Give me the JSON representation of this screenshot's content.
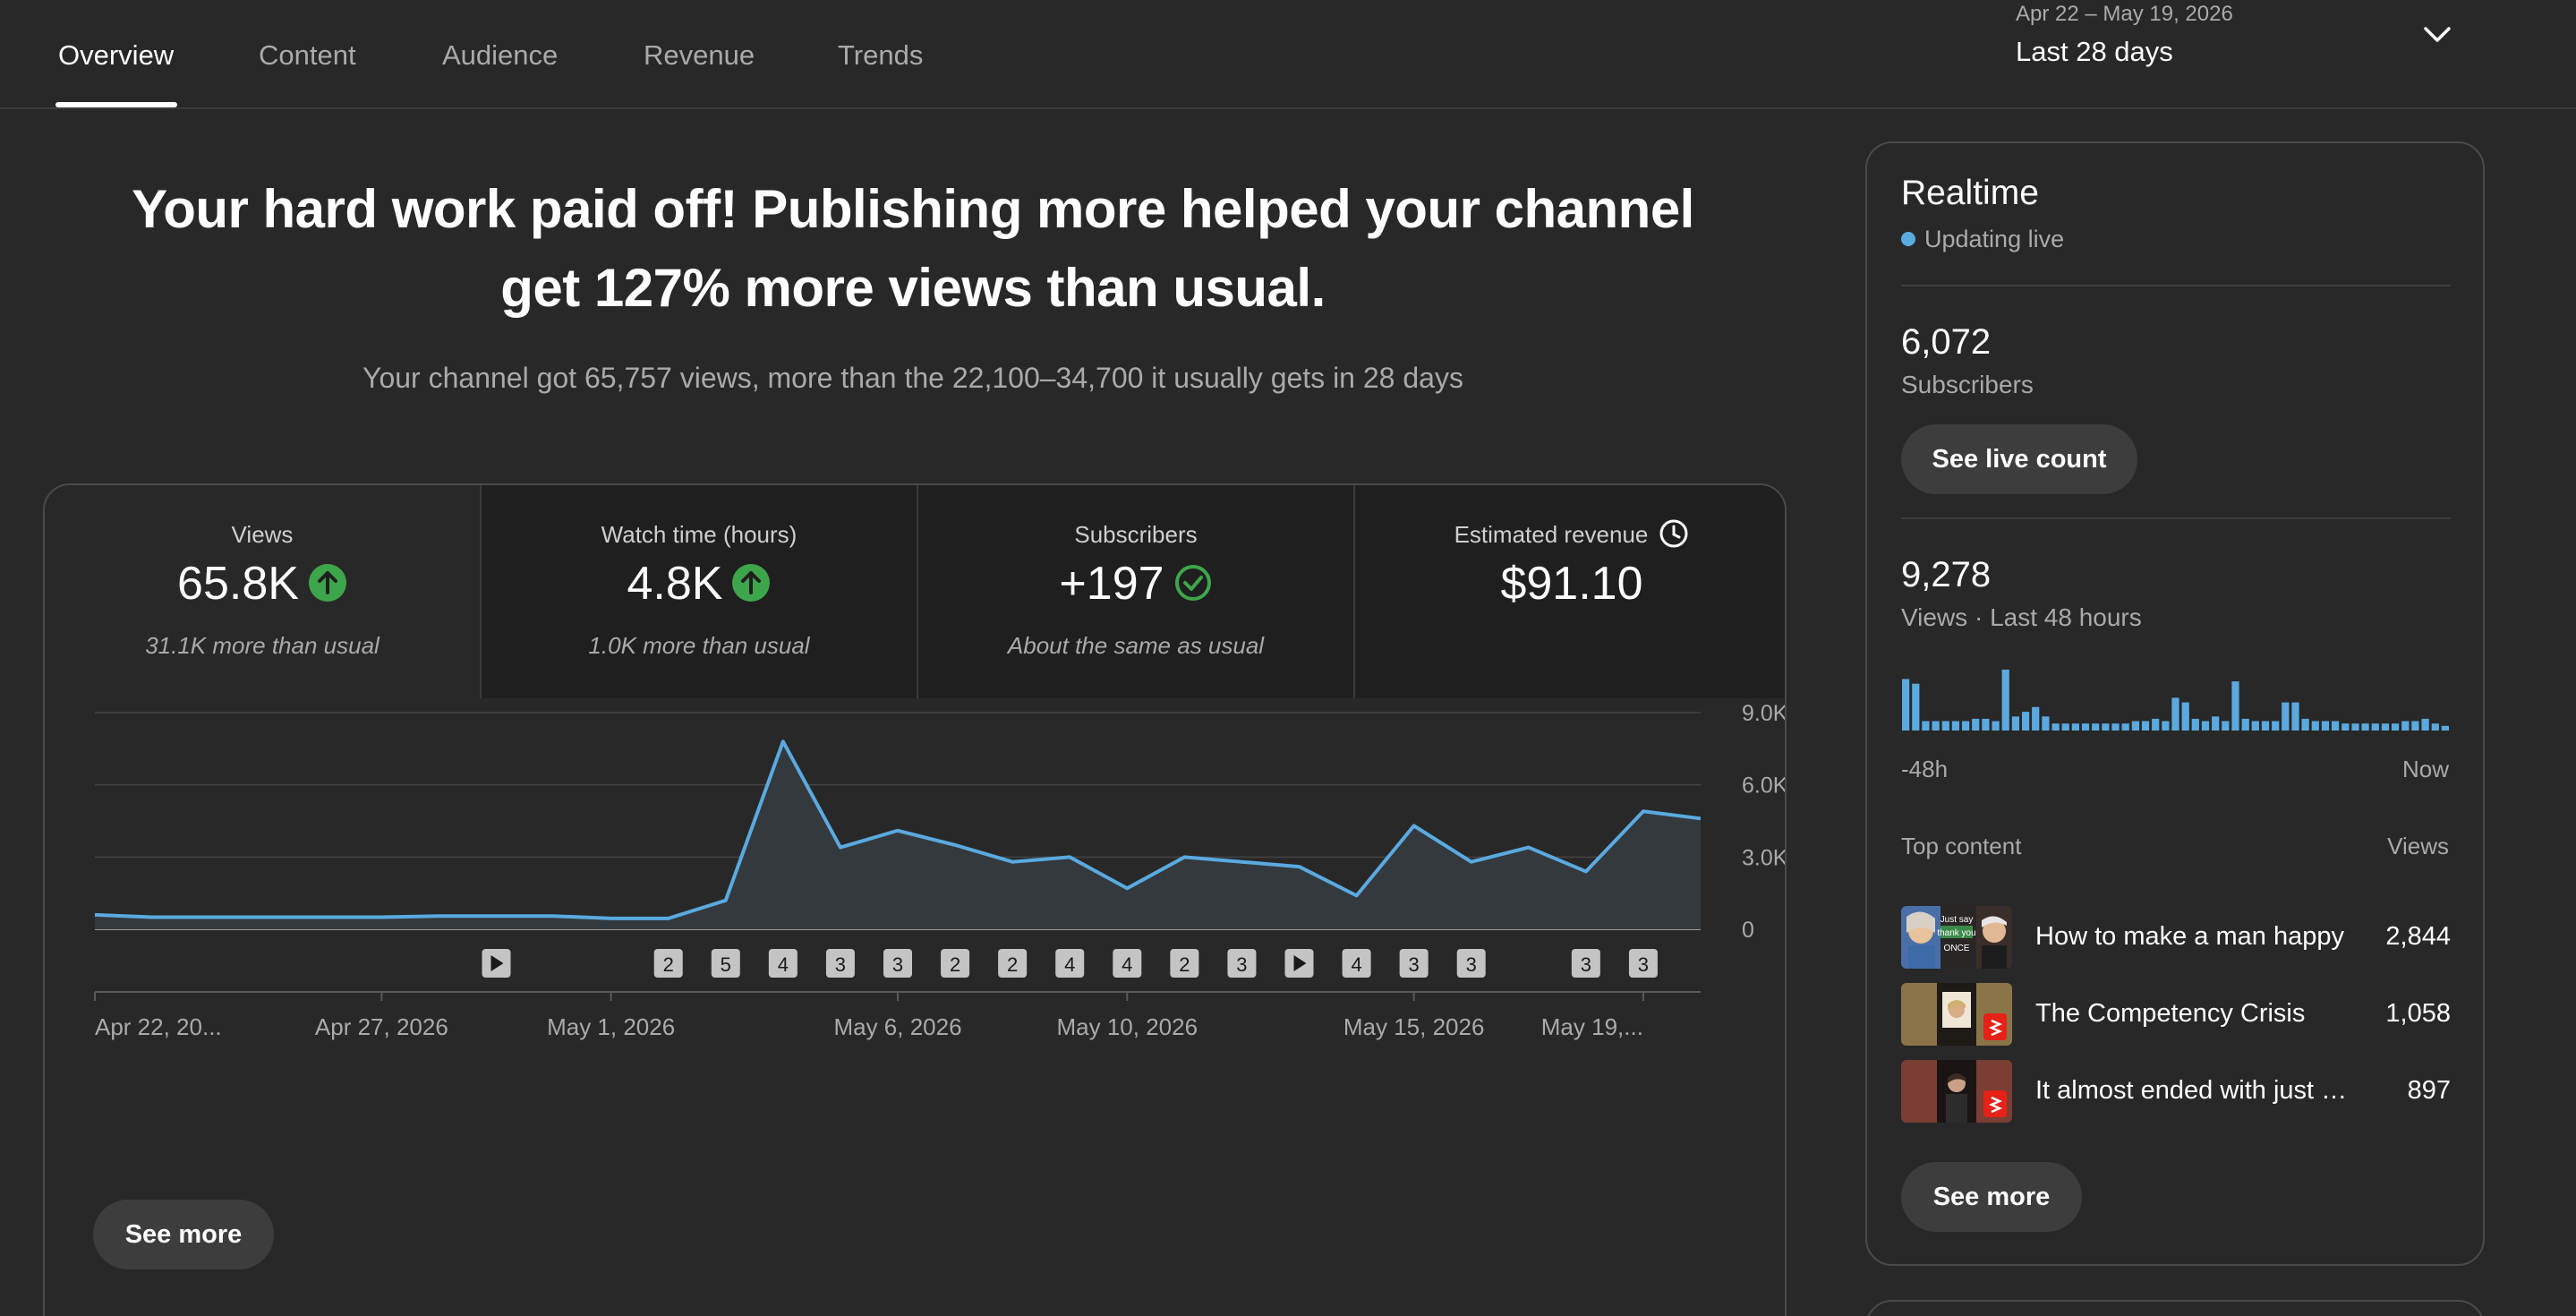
{
  "tabs": [
    {
      "label": "Overview",
      "active": true
    },
    {
      "label": "Content",
      "active": false
    },
    {
      "label": "Audience",
      "active": false
    },
    {
      "label": "Revenue",
      "active": false
    },
    {
      "label": "Trends",
      "active": false
    }
  ],
  "date_range": {
    "range": "Apr 22 – May 19, 2026",
    "label": "Last 28 days",
    "icon": "chevron-down-icon"
  },
  "headline": "Your hard work paid off! Publishing more helped your channel get 127% more views than usual.",
  "subline": "Your channel got 65,757 views, more than the 22,100–34,700 it usually gets in 28 days",
  "metrics": [
    {
      "label": "Views",
      "value": "65.8K",
      "status_icon": "arrow-up-icon",
      "note": "31.1K more than usual"
    },
    {
      "label": "Watch time (hours)",
      "value": "4.8K",
      "status_icon": "arrow-up-icon",
      "note": "1.0K more than usual"
    },
    {
      "label": "Subscribers",
      "value": "+197",
      "status_icon": "check-circle-icon",
      "note": "About the same as usual"
    },
    {
      "label": "Estimated revenue",
      "value": "$91.10",
      "label_icon": "clock-icon"
    }
  ],
  "colors": {
    "accent_line": "#5aaae0",
    "positive": "#3ea64a",
    "background": "#282828"
  },
  "chart_data": {
    "type": "line",
    "series": [
      {
        "values": [
          600,
          500,
          500,
          500,
          500,
          500,
          550,
          550,
          550,
          450,
          450,
          1200,
          7800,
          3400,
          4100,
          3500,
          2800,
          3000,
          1700,
          3000,
          2800,
          2600,
          1400,
          4300,
          2800,
          3400,
          2400,
          4900,
          4600
        ]
      }
    ],
    "ylim": [
      0,
      9000
    ],
    "y_ticks": [
      "9.0K",
      "6.0K",
      "3.0K",
      "0"
    ],
    "x_tick_labels": [
      "Apr 22, 20...",
      "Apr 27, 2026",
      "May 1, 2026",
      "May 6, 2026",
      "May 10, 2026",
      "May 15, 2026",
      "May 19,..."
    ],
    "x_tick_days": [
      0,
      5,
      9,
      14,
      18,
      23,
      27
    ],
    "grid": true,
    "upload_markers": [
      {
        "day": 7,
        "label": "play"
      },
      {
        "day": 10,
        "label": "2"
      },
      {
        "day": 11,
        "label": "5"
      },
      {
        "day": 12,
        "label": "4"
      },
      {
        "day": 13,
        "label": "3"
      },
      {
        "day": 14,
        "label": "3"
      },
      {
        "day": 15,
        "label": "2"
      },
      {
        "day": 16,
        "label": "2"
      },
      {
        "day": 17,
        "label": "4"
      },
      {
        "day": 18,
        "label": "4"
      },
      {
        "day": 19,
        "label": "2"
      },
      {
        "day": 20,
        "label": "3"
      },
      {
        "day": 21,
        "label": "play"
      },
      {
        "day": 22,
        "label": "4"
      },
      {
        "day": 23,
        "label": "3"
      },
      {
        "day": 24,
        "label": "3"
      },
      {
        "day": 26,
        "label": "3"
      },
      {
        "day": 27,
        "label": "3"
      }
    ]
  },
  "main_see_more": "See more",
  "realtime": {
    "title": "Realtime",
    "status": "Updating live",
    "subscribers_value": "6,072",
    "subscribers_label": "Subscribers",
    "live_count_button": "See live count",
    "views_value": "9,278",
    "views_label": "Views · Last 48 hours",
    "bars": [
      22,
      20,
      4,
      4,
      4,
      4,
      4,
      5,
      5,
      4,
      26,
      6,
      8,
      10,
      6,
      3,
      3,
      3,
      3,
      3,
      3,
      3,
      3,
      4,
      4,
      5,
      4,
      14,
      12,
      5,
      4,
      6,
      4,
      21,
      5,
      4,
      4,
      4,
      12,
      12,
      5,
      4,
      4,
      4,
      3,
      3,
      3,
      3,
      3,
      3,
      4,
      4,
      5,
      3,
      2
    ],
    "axis_start": "-48h",
    "axis_end": "Now",
    "top_content_header": "Top content",
    "views_header": "Views",
    "top_content": [
      {
        "title": "How to make a man happy",
        "views": "2,844",
        "thumb_text": [
          "Just say",
          "thank you",
          "ONCE"
        ]
      },
      {
        "title": "The Competency Crisis",
        "views": "1,058"
      },
      {
        "title": "It almost ended with just one",
        "views": "897"
      }
    ],
    "see_more": "See more"
  }
}
